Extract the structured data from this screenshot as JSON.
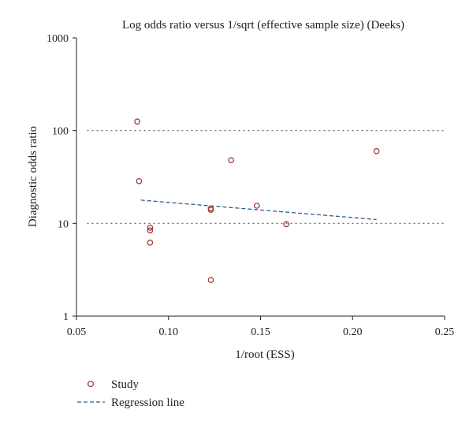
{
  "chart_data": {
    "type": "scatter",
    "title": "Log odds ratio versus 1/sqrt (effective sample size) (Deeks)",
    "xlabel": "1/root (ESS)",
    "ylabel": "Diagnostic odds ratio",
    "xlim": [
      0.05,
      0.25
    ],
    "ylim": [
      1,
      1000
    ],
    "yscale": "log",
    "x_ticks": [
      "0.05",
      "0.10",
      "0.15",
      "0.20",
      "0.25"
    ],
    "y_ticks": [
      "1",
      "10",
      "100",
      "1000"
    ],
    "reference_lines_y": [
      10,
      100
    ],
    "legend_position": "bottom-left",
    "series": [
      {
        "name": "Study",
        "kind": "points",
        "color": "#a03c3c",
        "points": [
          {
            "x": 0.083,
            "y": 125
          },
          {
            "x": 0.084,
            "y": 28.5
          },
          {
            "x": 0.09,
            "y": 9.0
          },
          {
            "x": 0.09,
            "y": 8.4
          },
          {
            "x": 0.09,
            "y": 6.2
          },
          {
            "x": 0.123,
            "y": 14.5
          },
          {
            "x": 0.123,
            "y": 14.0
          },
          {
            "x": 0.123,
            "y": 2.45
          },
          {
            "x": 0.134,
            "y": 48
          },
          {
            "x": 0.148,
            "y": 15.5
          },
          {
            "x": 0.164,
            "y": 9.8
          },
          {
            "x": 0.213,
            "y": 60
          }
        ]
      },
      {
        "name": "Regression line",
        "kind": "line",
        "color": "#2f5d8a",
        "points": [
          {
            "x": 0.085,
            "y": 17.8
          },
          {
            "x": 0.213,
            "y": 11.0
          }
        ]
      }
    ]
  }
}
